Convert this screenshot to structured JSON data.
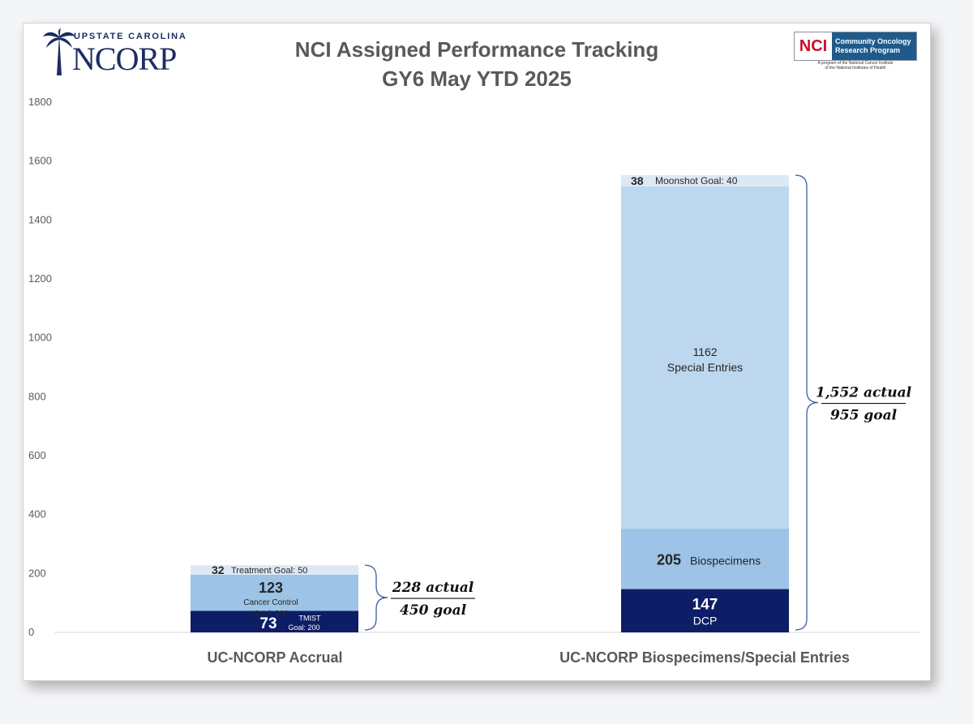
{
  "title_line1": "NCI Assigned Performance Tracking",
  "title_line2": "GY6 May YTD 2025",
  "logo_left": {
    "small": "UPSTATE CAROLINA",
    "big": "NCORP"
  },
  "logo_right": {
    "nci": "NCI",
    "line1": "Community Oncology",
    "line2": "Research Program",
    "sub1": "A program of the National Cancer Institute",
    "sub2": "of the National Institutes of Health"
  },
  "colors": {
    "dark": "#0d1d66",
    "mid": "#9dc3e6",
    "light": "#bdd7ee",
    "lighter": "#dde8f5",
    "text": "#595959"
  },
  "chart_data": {
    "type": "bar",
    "stacked": true,
    "ylim": [
      0,
      1800
    ],
    "yticks": [
      0,
      200,
      400,
      600,
      800,
      1000,
      1200,
      1400,
      1600,
      1800
    ],
    "categories": [
      "UC-NCORP Accrual",
      "UC-NCORP Biospecimens/Special Entries"
    ],
    "grid": false,
    "bars": [
      {
        "category": "UC-NCORP Accrual",
        "segments": [
          {
            "value": 73,
            "value_label": "73",
            "label1": "TMIST",
            "label2": "Goal: 200",
            "color": "dark"
          },
          {
            "value": 123,
            "value_label": "123",
            "label1": "Cancer Control",
            "label2": "Goal: 200",
            "color": "mid"
          },
          {
            "value": 32,
            "value_label": "32",
            "label1": "Treatment Goal: 50",
            "label2": "",
            "color": "lighter"
          }
        ],
        "summary": {
          "top": "228 actual",
          "bottom": "450 goal"
        }
      },
      {
        "category": "UC-NCORP Biospecimens/Special Entries",
        "segments": [
          {
            "value": 147,
            "value_label": "147",
            "label1": "DCP",
            "label2": "",
            "color": "dark"
          },
          {
            "value": 205,
            "value_label": "205",
            "label1": "Biospecimens",
            "label2": "",
            "color": "mid"
          },
          {
            "value": 1162,
            "value_label": "1162",
            "label1": "Special Entries",
            "label2": "",
            "color": "light"
          },
          {
            "value": 38,
            "value_label": "38",
            "label1": "Moonshot Goal: 40",
            "label2": "",
            "color": "lighter"
          }
        ],
        "summary": {
          "top": "1,552 actual",
          "bottom": "955 goal"
        }
      }
    ]
  }
}
